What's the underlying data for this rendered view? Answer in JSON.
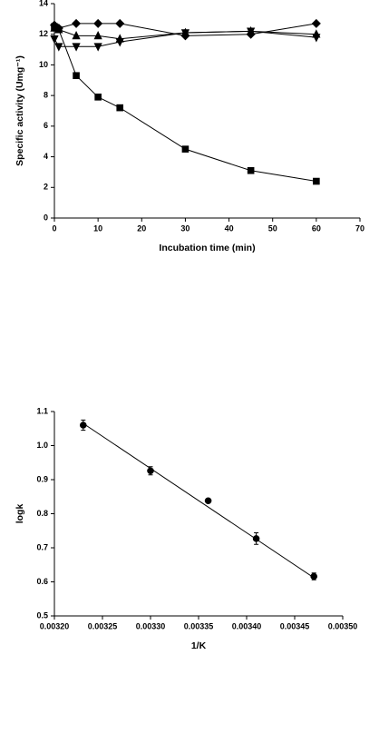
{
  "chart_data": [
    {
      "type": "line",
      "x_label": "Incubation time (min)",
      "y_label": "Specific activity (Umg⁻¹)",
      "xlim": [
        0,
        70
      ],
      "xticks": [
        0,
        10,
        20,
        30,
        40,
        50,
        60,
        70
      ],
      "ylim": [
        0,
        14
      ],
      "yticks": [
        0,
        2,
        4,
        6,
        8,
        10,
        12,
        14
      ],
      "grid": false,
      "x": [
        0,
        1,
        5,
        10,
        15,
        30,
        45,
        60
      ],
      "series": [
        {
          "color": "#000000",
          "marker": "square",
          "values": [
            12.5,
            12.3,
            9.3,
            7.9,
            7.2,
            4.5,
            3.1,
            2.4
          ]
        },
        {
          "color": "#000000",
          "marker": "diamond",
          "values": [
            12.6,
            12.4,
            12.7,
            12.7,
            12.7,
            11.9,
            12.0,
            12.7
          ]
        },
        {
          "color": "#000000",
          "marker": "triangle-up",
          "values": [
            12.4,
            12.3,
            11.9,
            11.9,
            11.7,
            12.1,
            12.2,
            12.0
          ]
        },
        {
          "color": "#000000",
          "marker": "triangle-down",
          "values": [
            11.7,
            11.2,
            11.2,
            11.2,
            11.5,
            12.1,
            12.2,
            11.8
          ]
        }
      ]
    },
    {
      "type": "scatter",
      "x_label": "1/K",
      "y_label": "logk",
      "xlim": [
        0.0032,
        0.0035
      ],
      "xticks": [
        {
          "value": 0.0032,
          "label": "0.00320"
        },
        {
          "value": 0.00325,
          "label": "0.00325"
        },
        {
          "value": 0.0033,
          "label": "0.00330"
        },
        {
          "value": 0.00335,
          "label": "0.00335"
        },
        {
          "value": 0.0034,
          "label": "0.00340"
        },
        {
          "value": 0.00345,
          "label": "0.00345"
        },
        {
          "value": 0.0035,
          "label": "0.00350"
        }
      ],
      "ylim": [
        0.5,
        1.1
      ],
      "yticks": [
        0.5,
        0.6,
        0.7,
        0.8,
        0.9,
        {
          "value": 1.0,
          "label": "1.0"
        },
        1.1
      ],
      "grid": false,
      "series": [
        {
          "color": "#000000",
          "marker": "circle",
          "x": [
            0.00323,
            0.0033,
            0.00336,
            0.00341,
            0.00347
          ],
          "values": [
            1.06,
            0.926,
            0.838,
            0.727,
            0.616
          ],
          "errors": [
            0.015,
            0.012,
            0.005,
            0.017,
            0.01
          ]
        }
      ],
      "trendline": {
        "color": "#000000",
        "x": [
          0.00323,
          0.00347
        ],
        "values": [
          1.065,
          0.612
        ]
      }
    }
  ]
}
